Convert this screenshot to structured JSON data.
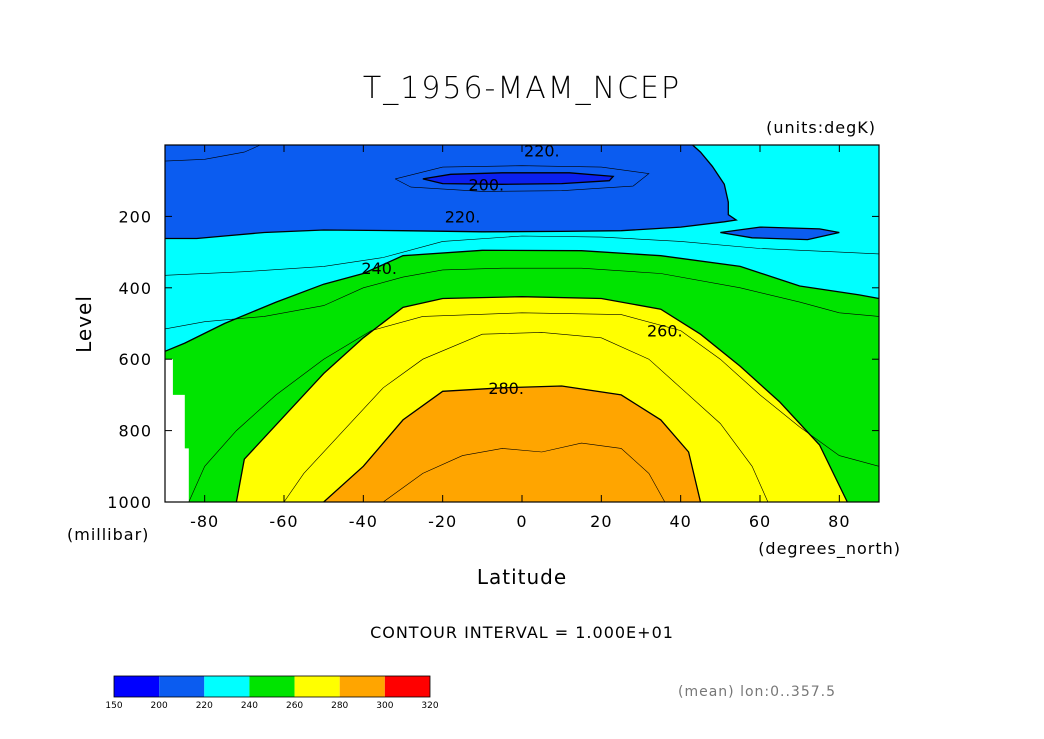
{
  "chart_data": {
    "type": "contour",
    "title": "T_1956-MAM_NCEP",
    "units_label": "(units:degK)",
    "xlabel": "Latitude",
    "xunits_label": "(degrees_north)",
    "ylabel": "Level",
    "yunits_label": "(millibar)",
    "xlim": [
      -90,
      90
    ],
    "ylim": [
      1000,
      0
    ],
    "x_ticks": [
      "-80",
      "-60",
      "-40",
      "-20",
      "0",
      "20",
      "40",
      "60",
      "80"
    ],
    "x_tick_values": [
      -80,
      -60,
      -40,
      -20,
      0,
      20,
      40,
      60,
      80
    ],
    "y_ticks": [
      "200",
      "400",
      "600",
      "800",
      "1000"
    ],
    "y_tick_values": [
      200,
      400,
      600,
      800,
      1000
    ],
    "contour_interval_text": "CONTOUR INTERVAL = 1.000E+01",
    "footnote": "(mean) lon:0..357.5",
    "contour_labels": [
      {
        "text": "220.",
        "x": 5,
        "y": 15
      },
      {
        "text": "200.",
        "x": -9,
        "y": 110
      },
      {
        "text": "220.",
        "x": -15,
        "y": 200
      },
      {
        "text": "240.",
        "x": -36,
        "y": 345
      },
      {
        "text": "260.",
        "x": 36,
        "y": 520
      },
      {
        "text": "280.",
        "x": -4,
        "y": 680
      }
    ],
    "colorbar": {
      "levels": [
        150,
        200,
        220,
        240,
        260,
        280,
        300,
        320
      ],
      "tick_labels": [
        "150",
        "200",
        "220",
        "240",
        "260",
        "280",
        "300",
        "320"
      ],
      "colors": [
        "#0000ff",
        "#0b5cf0",
        "#00ffff",
        "#00e400",
        "#ffff00",
        "#ffa500",
        "#ff0000"
      ]
    },
    "fill_colors": {
      "lt200": "#0b20f0",
      "b200_220": "#0b5cf0",
      "b220_240": "#00ffff",
      "b240_260": "#00e400",
      "b260_280": "#ffff00",
      "b280_300": "#ffa500",
      "missing": "#ffffff"
    },
    "regions": [
      {
        "band": "b220_240",
        "points": [
          [
            -90,
            0
          ],
          [
            90,
            0
          ],
          [
            90,
            1000
          ],
          [
            -90,
            1000
          ]
        ]
      },
      {
        "band": "b200_220",
        "points": [
          [
            -90,
            0
          ],
          [
            43,
            0
          ],
          [
            45,
            20
          ],
          [
            48,
            60
          ],
          [
            51,
            110
          ],
          [
            52,
            160
          ],
          [
            52,
            195
          ],
          [
            54,
            210
          ],
          [
            51,
            215
          ],
          [
            40,
            230
          ],
          [
            25,
            240
          ],
          [
            10,
            242
          ],
          [
            -10,
            243
          ],
          [
            -30,
            240
          ],
          [
            -50,
            238
          ],
          [
            -65,
            245
          ],
          [
            -75,
            255
          ],
          [
            -82,
            262
          ],
          [
            -90,
            262
          ]
        ]
      },
      {
        "band": "b200_220",
        "points": [
          [
            50,
            245
          ],
          [
            60,
            230
          ],
          [
            75,
            235
          ],
          [
            80,
            245
          ],
          [
            72,
            265
          ],
          [
            58,
            260
          ]
        ]
      },
      {
        "band": "lt200",
        "points": [
          [
            -25,
            95
          ],
          [
            -18,
            82
          ],
          [
            -5,
            78
          ],
          [
            12,
            78
          ],
          [
            23,
            88
          ],
          [
            22,
            100
          ],
          [
            10,
            108
          ],
          [
            -5,
            110
          ],
          [
            -20,
            108
          ]
        ]
      },
      {
        "band": "b240_260",
        "points": [
          [
            -90,
            1000
          ],
          [
            -90,
            578
          ],
          [
            -85,
            555
          ],
          [
            -75,
            500
          ],
          [
            -62,
            440
          ],
          [
            -50,
            390
          ],
          [
            -40,
            360
          ],
          [
            -30,
            310
          ],
          [
            -10,
            295
          ],
          [
            15,
            296
          ],
          [
            35,
            310
          ],
          [
            55,
            340
          ],
          [
            70,
            395
          ],
          [
            85,
            420
          ],
          [
            90,
            430
          ],
          [
            90,
            1000
          ]
        ]
      },
      {
        "band": "b260_280",
        "points": [
          [
            -72,
            1000
          ],
          [
            -70,
            880
          ],
          [
            -60,
            760
          ],
          [
            -50,
            640
          ],
          [
            -40,
            540
          ],
          [
            -30,
            455
          ],
          [
            -20,
            430
          ],
          [
            0,
            425
          ],
          [
            20,
            430
          ],
          [
            35,
            460
          ],
          [
            45,
            530
          ],
          [
            55,
            620
          ],
          [
            65,
            720
          ],
          [
            75,
            840
          ],
          [
            82,
            1000
          ]
        ]
      },
      {
        "band": "b280_300",
        "points": [
          [
            -50,
            1000
          ],
          [
            -40,
            900
          ],
          [
            -30,
            770
          ],
          [
            -20,
            690
          ],
          [
            -5,
            680
          ],
          [
            10,
            675
          ],
          [
            25,
            700
          ],
          [
            35,
            770
          ],
          [
            42,
            860
          ],
          [
            45,
            1000
          ]
        ]
      },
      {
        "band": "missing",
        "points": [
          [
            -90,
            600
          ],
          [
            -88,
            600
          ],
          [
            -88,
            700
          ],
          [
            -85,
            700
          ],
          [
            -85,
            850
          ],
          [
            -84,
            850
          ],
          [
            -84,
            1000
          ],
          [
            -90,
            1000
          ]
        ]
      }
    ],
    "contour_lines": [
      {
        "style": "thick",
        "points": [
          [
            -90,
            262
          ],
          [
            -82,
            262
          ],
          [
            -75,
            255
          ],
          [
            -65,
            245
          ],
          [
            -50,
            238
          ],
          [
            -30,
            240
          ],
          [
            -10,
            243
          ],
          [
            10,
            242
          ],
          [
            25,
            240
          ],
          [
            40,
            230
          ],
          [
            51,
            215
          ],
          [
            54,
            210
          ],
          [
            52,
            195
          ],
          [
            52,
            160
          ],
          [
            51,
            110
          ],
          [
            48,
            60
          ],
          [
            45,
            20
          ],
          [
            43,
            0
          ]
        ]
      },
      {
        "style": "thick",
        "points": [
          [
            -25,
            95
          ],
          [
            -18,
            82
          ],
          [
            -5,
            78
          ],
          [
            12,
            78
          ],
          [
            23,
            88
          ],
          [
            22,
            100
          ],
          [
            10,
            108
          ],
          [
            -5,
            110
          ],
          [
            -20,
            108
          ],
          [
            -25,
            95
          ]
        ]
      },
      {
        "style": "thick",
        "points": [
          [
            -90,
            578
          ],
          [
            -85,
            555
          ],
          [
            -75,
            500
          ],
          [
            -62,
            440
          ],
          [
            -50,
            390
          ],
          [
            -40,
            360
          ],
          [
            -30,
            310
          ],
          [
            -10,
            295
          ],
          [
            15,
            296
          ],
          [
            35,
            310
          ],
          [
            55,
            340
          ],
          [
            70,
            395
          ],
          [
            85,
            420
          ],
          [
            90,
            430
          ]
        ]
      },
      {
        "style": "thick",
        "points": [
          [
            -72,
            1000
          ],
          [
            -70,
            880
          ],
          [
            -60,
            760
          ],
          [
            -50,
            640
          ],
          [
            -40,
            540
          ],
          [
            -30,
            455
          ],
          [
            -20,
            430
          ],
          [
            0,
            425
          ],
          [
            20,
            430
          ],
          [
            35,
            460
          ],
          [
            45,
            530
          ],
          [
            55,
            620
          ],
          [
            65,
            720
          ],
          [
            75,
            840
          ],
          [
            82,
            1000
          ]
        ]
      },
      {
        "style": "thick",
        "points": [
          [
            -50,
            1000
          ],
          [
            -40,
            900
          ],
          [
            -30,
            770
          ],
          [
            -20,
            690
          ],
          [
            -5,
            680
          ],
          [
            10,
            675
          ],
          [
            25,
            700
          ],
          [
            35,
            770
          ],
          [
            42,
            860
          ],
          [
            45,
            1000
          ]
        ]
      },
      {
        "style": "thick",
        "points": [
          [
            50,
            245
          ],
          [
            60,
            230
          ],
          [
            75,
            235
          ],
          [
            80,
            245
          ],
          [
            72,
            265
          ],
          [
            58,
            260
          ],
          [
            50,
            245
          ]
        ]
      },
      {
        "style": "thin",
        "points": [
          [
            -32,
            95
          ],
          [
            -20,
            62
          ],
          [
            0,
            58
          ],
          [
            20,
            62
          ],
          [
            32,
            80
          ],
          [
            28,
            115
          ],
          [
            10,
            128
          ],
          [
            -10,
            130
          ],
          [
            -28,
            118
          ],
          [
            -32,
            95
          ]
        ]
      },
      {
        "style": "thin",
        "points": [
          [
            -90,
            515
          ],
          [
            -80,
            495
          ],
          [
            -65,
            480
          ],
          [
            -50,
            450
          ],
          [
            -40,
            400
          ],
          [
            -30,
            370
          ],
          [
            -20,
            350
          ],
          [
            -5,
            345
          ],
          [
            15,
            345
          ],
          [
            35,
            360
          ],
          [
            55,
            400
          ],
          [
            70,
            440
          ],
          [
            80,
            470
          ],
          [
            90,
            480
          ]
        ]
      },
      {
        "style": "thin",
        "points": [
          [
            -90,
            365
          ],
          [
            -70,
            355
          ],
          [
            -50,
            340
          ],
          [
            -35,
            315
          ],
          [
            -20,
            270
          ],
          [
            0,
            255
          ],
          [
            20,
            258
          ],
          [
            40,
            270
          ],
          [
            60,
            290
          ],
          [
            80,
            300
          ],
          [
            90,
            305
          ]
        ]
      },
      {
        "style": "thin",
        "points": [
          [
            -84,
            1000
          ],
          [
            -80,
            900
          ],
          [
            -72,
            800
          ],
          [
            -62,
            700
          ],
          [
            -50,
            600
          ],
          [
            -38,
            520
          ],
          [
            -25,
            480
          ],
          [
            0,
            470
          ],
          [
            25,
            475
          ],
          [
            40,
            520
          ],
          [
            50,
            600
          ],
          [
            60,
            700
          ],
          [
            70,
            790
          ],
          [
            80,
            870
          ],
          [
            90,
            900
          ]
        ]
      },
      {
        "style": "thin",
        "points": [
          [
            -60,
            1000
          ],
          [
            -55,
            920
          ],
          [
            -45,
            800
          ],
          [
            -35,
            680
          ],
          [
            -25,
            600
          ],
          [
            -10,
            530
          ],
          [
            5,
            525
          ],
          [
            20,
            540
          ],
          [
            32,
            600
          ],
          [
            40,
            680
          ],
          [
            50,
            780
          ],
          [
            58,
            900
          ],
          [
            62,
            1000
          ]
        ]
      },
      {
        "style": "thin",
        "points": [
          [
            -35,
            1000
          ],
          [
            -25,
            920
          ],
          [
            -15,
            870
          ],
          [
            -5,
            850
          ],
          [
            5,
            860
          ],
          [
            15,
            835
          ],
          [
            25,
            850
          ],
          [
            32,
            920
          ],
          [
            36,
            1000
          ]
        ]
      },
      {
        "style": "thin",
        "points": [
          [
            -90,
            45
          ],
          [
            -80,
            40
          ],
          [
            -75,
            30
          ],
          [
            -70,
            20
          ],
          [
            -68,
            10
          ],
          [
            -66,
            0
          ]
        ]
      }
    ]
  }
}
